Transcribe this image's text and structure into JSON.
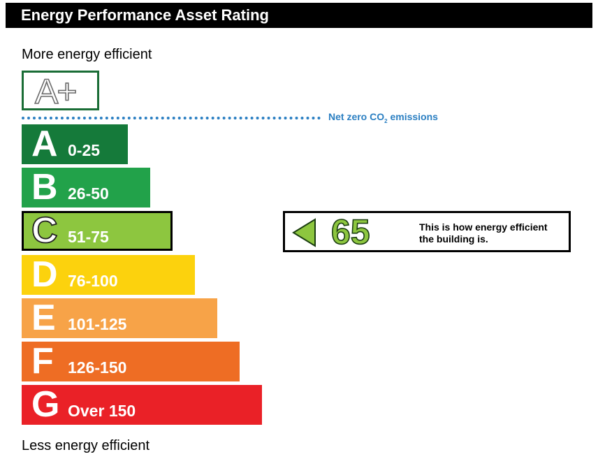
{
  "title": "Energy Performance Asset Rating",
  "more_label": "More energy efficient",
  "less_label": "Less energy efficient",
  "aplus_label": "A+",
  "net_zero_label_pre": "Net zero CO",
  "net_zero_label_sub": "2",
  "net_zero_label_post": " emissions",
  "rating_text_line1": "This is how energy efficient",
  "rating_text_line2": "the building is.",
  "chart_data": {
    "type": "bar",
    "bands": [
      {
        "letter": "A",
        "range": "0-25",
        "color": "#157a3a",
        "order": 1
      },
      {
        "letter": "B",
        "range": "26-50",
        "color": "#22a24a",
        "order": 2
      },
      {
        "letter": "C",
        "range": "51-75",
        "color": "#8dc63f",
        "order": 3
      },
      {
        "letter": "D",
        "range": "76-100",
        "color": "#fcd20d",
        "order": 4
      },
      {
        "letter": "E",
        "range": "101-125",
        "color": "#f7a348",
        "order": 5
      },
      {
        "letter": "F",
        "range": "126-150",
        "color": "#ee6d24",
        "order": 6
      },
      {
        "letter": "G",
        "range": "Over 150",
        "color": "#ea2127",
        "order": 7
      }
    ],
    "current_rating": 65,
    "current_band": "C"
  }
}
